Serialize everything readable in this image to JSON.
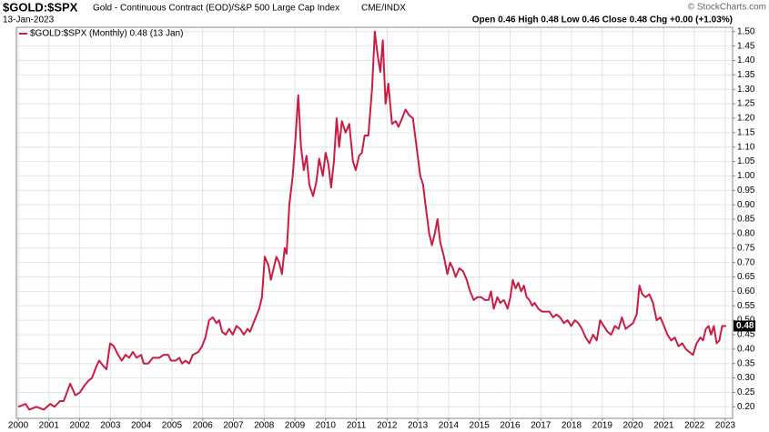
{
  "chart_data": {
    "type": "line",
    "title": "$GOLD:$SPX",
    "subtitle": "Gold - Continuous Contract (EOD)/S&P 500 Large Cap Index",
    "exchange": "CME/INDX",
    "date": "13-Jan-2023",
    "quote": "Open 0.46  High 0.48  Low 0.46  Close 0.48  Chg +0.00 (+1.03%)",
    "copyright": "© StockCharts.com",
    "last_value": 0.48,
    "last_value_label": "0.48",
    "grid": true,
    "xlim": [
      1999.94,
      2023.24
    ],
    "xticks": [
      2000,
      2001,
      2002,
      2003,
      2004,
      2005,
      2006,
      2007,
      2008,
      2009,
      2010,
      2011,
      2012,
      2013,
      2014,
      2015,
      2016,
      2017,
      2018,
      2019,
      2020,
      2021,
      2022,
      2023
    ],
    "ylim": [
      0.16,
      1.515
    ],
    "yticks": [
      {
        "value": 0.2,
        "label": "0.20"
      },
      0.25,
      {
        "value": 0.3,
        "label": "0.30"
      },
      0.35,
      {
        "value": 0.4,
        "label": "0.40"
      },
      0.45,
      {
        "value": 0.5,
        "label": "0.50"
      },
      0.55,
      {
        "value": 0.6,
        "label": "0.60"
      },
      0.65,
      {
        "value": 0.7,
        "label": "0.70"
      },
      0.75,
      {
        "value": 0.8,
        "label": "0.80"
      },
      0.85,
      {
        "value": 0.9,
        "label": "0.90"
      },
      0.95,
      {
        "value": 1.0,
        "label": "1.00"
      },
      1.05,
      {
        "value": 1.1,
        "label": "1.10"
      },
      1.15,
      {
        "value": 1.2,
        "label": "1.20"
      },
      1.25,
      {
        "value": 1.3,
        "label": "1.30"
      },
      1.35,
      {
        "value": 1.4,
        "label": "1.40"
      },
      1.45,
      {
        "value": 1.5,
        "label": "1.50"
      }
    ],
    "x": [
      2000.0,
      2000.24,
      2000.36,
      2000.59,
      2000.83,
      2001.04,
      2001.18,
      2001.36,
      2001.48,
      2001.69,
      2001.86,
      2002.01,
      2002.13,
      2002.28,
      2002.4,
      2002.54,
      2002.63,
      2002.78,
      2002.87,
      2002.99,
      2003.11,
      2003.25,
      2003.37,
      2003.49,
      2003.61,
      2003.73,
      2003.85,
      2004.0,
      2004.08,
      2004.23,
      2004.38,
      2004.59,
      2004.73,
      2004.88,
      2004.97,
      2005.12,
      2005.24,
      2005.33,
      2005.44,
      2005.56,
      2005.68,
      2005.86,
      2005.98,
      2006.09,
      2006.21,
      2006.33,
      2006.45,
      2006.54,
      2006.63,
      2006.75,
      2006.86,
      2006.98,
      2007.1,
      2007.22,
      2007.34,
      2007.46,
      2007.54,
      2007.69,
      2007.84,
      2007.93,
      2008.02,
      2008.14,
      2008.22,
      2008.31,
      2008.4,
      2008.49,
      2008.58,
      2008.67,
      2008.73,
      2008.82,
      2008.93,
      2009.02,
      2009.11,
      2009.2,
      2009.29,
      2009.38,
      2009.47,
      2009.59,
      2009.7,
      2009.79,
      2009.91,
      2010.0,
      2010.09,
      2010.18,
      2010.27,
      2010.36,
      2010.44,
      2010.53,
      2010.65,
      2010.77,
      2010.89,
      2010.98,
      2011.09,
      2011.18,
      2011.27,
      2011.39,
      2011.51,
      2011.6,
      2011.69,
      2011.78,
      2011.86,
      2011.95,
      2012.04,
      2012.16,
      2012.28,
      2012.37,
      2012.49,
      2012.6,
      2012.72,
      2012.84,
      2012.96,
      2013.08,
      2013.17,
      2013.25,
      2013.37,
      2013.46,
      2013.55,
      2013.64,
      2013.73,
      2013.85,
      2013.96,
      2014.05,
      2014.14,
      2014.23,
      2014.35,
      2014.47,
      2014.59,
      2014.7,
      2014.82,
      2014.94,
      2015.06,
      2015.18,
      2015.3,
      2015.38,
      2015.47,
      2015.59,
      2015.68,
      2015.8,
      2015.92,
      2016.01,
      2016.09,
      2016.18,
      2016.27,
      2016.36,
      2016.45,
      2016.54,
      2016.63,
      2016.72,
      2016.8,
      2016.92,
      2017.04,
      2017.16,
      2017.28,
      2017.4,
      2017.51,
      2017.63,
      2017.75,
      2017.87,
      2017.99,
      2018.11,
      2018.22,
      2018.34,
      2018.46,
      2018.58,
      2018.7,
      2018.82,
      2018.93,
      2019.05,
      2019.17,
      2019.29,
      2019.41,
      2019.53,
      2019.64,
      2019.76,
      2019.88,
      2020.0,
      2020.12,
      2020.21,
      2020.3,
      2020.41,
      2020.53,
      2020.65,
      2020.77,
      2020.89,
      2021.01,
      2021.12,
      2021.24,
      2021.36,
      2021.48,
      2021.6,
      2021.72,
      2021.83,
      2021.95,
      2022.07,
      2022.19,
      2022.28,
      2022.37,
      2022.46,
      2022.54,
      2022.63,
      2022.72,
      2022.81,
      2022.9,
      2023.03
    ],
    "series": [
      {
        "name": "$GOLD:$SPX (Monthly) 0.48 (13 Jan)",
        "color": "#cc1c44",
        "values": [
          0.2,
          0.21,
          0.19,
          0.2,
          0.19,
          0.21,
          0.2,
          0.22,
          0.22,
          0.28,
          0.24,
          0.25,
          0.27,
          0.29,
          0.3,
          0.34,
          0.36,
          0.34,
          0.33,
          0.42,
          0.41,
          0.38,
          0.36,
          0.38,
          0.37,
          0.39,
          0.37,
          0.38,
          0.35,
          0.35,
          0.37,
          0.37,
          0.38,
          0.38,
          0.36,
          0.36,
          0.37,
          0.35,
          0.36,
          0.35,
          0.38,
          0.39,
          0.41,
          0.44,
          0.5,
          0.51,
          0.49,
          0.5,
          0.46,
          0.45,
          0.47,
          0.45,
          0.48,
          0.47,
          0.45,
          0.47,
          0.46,
          0.5,
          0.54,
          0.58,
          0.72,
          0.69,
          0.64,
          0.68,
          0.72,
          0.7,
          0.66,
          0.75,
          0.73,
          0.9,
          1.0,
          1.13,
          1.28,
          1.1,
          1.02,
          1.07,
          0.97,
          0.93,
          0.98,
          1.06,
          1.0,
          1.08,
          1.04,
          0.96,
          1.05,
          1.2,
          1.1,
          1.19,
          1.15,
          1.18,
          1.05,
          1.02,
          1.07,
          1.08,
          1.14,
          1.14,
          1.3,
          1.5,
          1.42,
          1.36,
          1.47,
          1.25,
          1.32,
          1.18,
          1.19,
          1.17,
          1.2,
          1.23,
          1.21,
          1.2,
          1.1,
          1.0,
          0.97,
          0.9,
          0.8,
          0.76,
          0.8,
          0.85,
          0.77,
          0.72,
          0.66,
          0.7,
          0.68,
          0.65,
          0.68,
          0.67,
          0.64,
          0.6,
          0.57,
          0.58,
          0.58,
          0.57,
          0.57,
          0.6,
          0.54,
          0.58,
          0.56,
          0.57,
          0.54,
          0.58,
          0.64,
          0.61,
          0.63,
          0.6,
          0.62,
          0.58,
          0.57,
          0.55,
          0.56,
          0.54,
          0.53,
          0.53,
          0.53,
          0.51,
          0.52,
          0.51,
          0.49,
          0.5,
          0.48,
          0.5,
          0.49,
          0.47,
          0.44,
          0.42,
          0.45,
          0.43,
          0.5,
          0.48,
          0.46,
          0.45,
          0.48,
          0.47,
          0.51,
          0.47,
          0.48,
          0.49,
          0.52,
          0.62,
          0.59,
          0.58,
          0.59,
          0.56,
          0.5,
          0.51,
          0.48,
          0.45,
          0.43,
          0.44,
          0.41,
          0.42,
          0.4,
          0.39,
          0.38,
          0.42,
          0.44,
          0.43,
          0.47,
          0.48,
          0.45,
          0.48,
          0.42,
          0.43,
          0.48,
          0.48
        ]
      }
    ]
  }
}
